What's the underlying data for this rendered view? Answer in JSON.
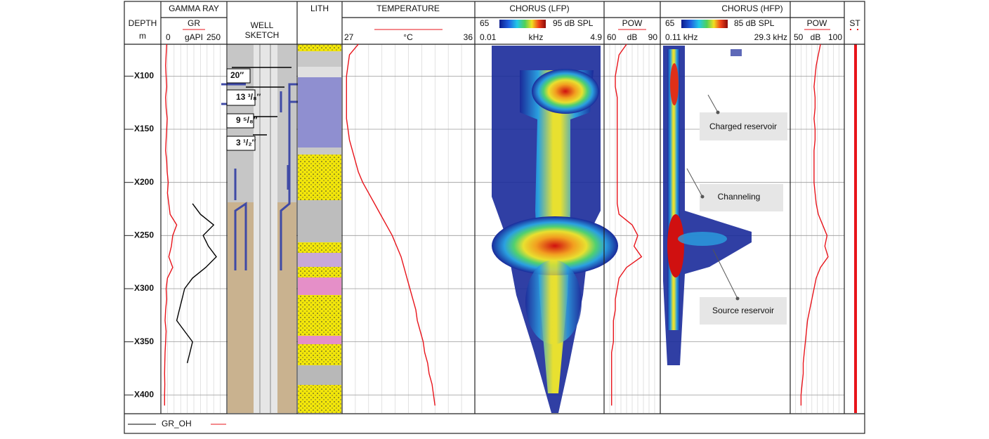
{
  "chart_data": {
    "type": "well-log",
    "depth_axis": {
      "label": "DEPTH",
      "unit": "m",
      "ylim": [
        70,
        417
      ],
      "yticks": [
        {
          "value": 100,
          "label": "X100"
        },
        {
          "value": 150,
          "label": "X150"
        },
        {
          "value": 200,
          "label": "X200"
        },
        {
          "value": 250,
          "label": "X250"
        },
        {
          "value": 300,
          "label": "X300"
        },
        {
          "value": 350,
          "label": "X350"
        },
        {
          "value": 400,
          "label": "X400"
        }
      ]
    },
    "depth": [
      70,
      80,
      90,
      100,
      110,
      120,
      130,
      140,
      150,
      160,
      170,
      180,
      190,
      200,
      210,
      220,
      230,
      240,
      250,
      260,
      270,
      280,
      290,
      300,
      310,
      320,
      330,
      340,
      350,
      360,
      370,
      380,
      390,
      400,
      410
    ],
    "tracks": [
      {
        "type": "line",
        "title": "GAMMA RAY",
        "curve": "GR",
        "unit": "gAPI",
        "xlim": [
          0,
          250
        ],
        "xticks": [
          0,
          250
        ],
        "series": [
          {
            "name": "GR_OH",
            "color": "#000000",
            "values": [
              null,
              null,
              null,
              null,
              null,
              null,
              null,
              null,
              null,
              null,
              null,
              null,
              null,
              null,
              null,
              120,
              150,
              200,
              160,
              180,
              210,
              170,
              120,
              90,
              80,
              70,
              60,
              90,
              120,
              110,
              100,
              null,
              null,
              null,
              null
            ]
          },
          {
            "color": "#e8141b",
            "values": [
              22,
              20,
              18,
              20,
              22,
              18,
              20,
              24,
              22,
              20,
              18,
              22,
              24,
              28,
              25,
              30,
              35,
              60,
              45,
              40,
              30,
              45,
              25,
              20,
              22,
              18,
              16,
              20,
              18,
              16,
              15,
              14,
              15,
              14,
              14
            ]
          }
        ]
      },
      {
        "type": "line",
        "title": "TEMPERATURE",
        "unit": "°C",
        "xlim": [
          27,
          36
        ],
        "xticks": [
          27,
          36
        ],
        "series": [
          {
            "color": "#e8141b",
            "values": [
              28.1,
              27.5,
              27.4,
              27.3,
              27.3,
              27.3,
              27.3,
              27.3,
              27.4,
              27.5,
              27.7,
              27.9,
              28.1,
              28.4,
              28.8,
              29.2,
              29.6,
              30.0,
              30.4,
              30.7,
              31.0,
              31.2,
              31.4,
              31.6,
              31.8,
              32.0,
              32.1,
              32.3,
              32.5,
              32.6,
              32.8,
              32.9,
              33.1,
              33.2,
              33.3
            ]
          }
        ]
      },
      {
        "type": "spectrogram",
        "title": "CHORUS (LFP)",
        "colorbar_ticks": [
          65,
          {
            "value": 95,
            "label": "95 dB SPL"
          }
        ],
        "unit": "kHz",
        "xticks": [
          0.01,
          4.9
        ]
      },
      {
        "type": "line",
        "title": "POW",
        "unit": "dB",
        "xlim": [
          60,
          90
        ],
        "xticks": [
          60,
          90
        ],
        "series": [
          {
            "color": "#e8141b",
            "values": [
              72,
              68,
              67,
              66,
              66,
              67,
              67,
              67,
              67,
              67,
              67,
              67,
              67,
              67,
              67,
              67,
              68,
              75,
              78,
              76,
              80,
              72,
              68,
              67,
              66,
              66,
              65,
              65,
              65,
              64,
              64,
              64,
              64,
              64,
              64
            ]
          }
        ]
      },
      {
        "type": "spectrogram",
        "title": "CHORUS (HFP)",
        "colorbar_ticks": [
          65,
          {
            "value": 85,
            "label": "85 dB SPL"
          }
        ],
        "xticks": [
          {
            "value": 0.11,
            "label": "0.11 kHz"
          },
          {
            "value": 29.3,
            "label": "29.3 kHz"
          }
        ]
      },
      {
        "type": "line",
        "title": "POW",
        "unit": "dB",
        "xlim": [
          50,
          100
        ],
        "xticks": [
          50,
          100
        ],
        "series": [
          {
            "color": "#e8141b",
            "values": [
              78,
              76,
              74,
              73,
              72,
              73,
              73,
              72,
              73,
              73,
              72,
              72,
              72,
              72,
              73,
              74,
              76,
              80,
              84,
              82,
              85,
              78,
              74,
              72,
              70,
              68,
              66,
              65,
              64,
              63,
              62,
              62,
              61,
              60,
              60
            ]
          }
        ]
      }
    ],
    "well_sketch": {
      "title": [
        "WELL",
        "SKETCH"
      ],
      "casings": [
        "20″",
        "13 ³/₈″",
        "9 ⁵/₈″",
        "3 ¹/₂″"
      ]
    },
    "lith": {
      "title": "LITH"
    },
    "st": {
      "title": "ST"
    },
    "annotations": [
      "Charged reservoir",
      "Channeling",
      "Source reservoir"
    ]
  }
}
